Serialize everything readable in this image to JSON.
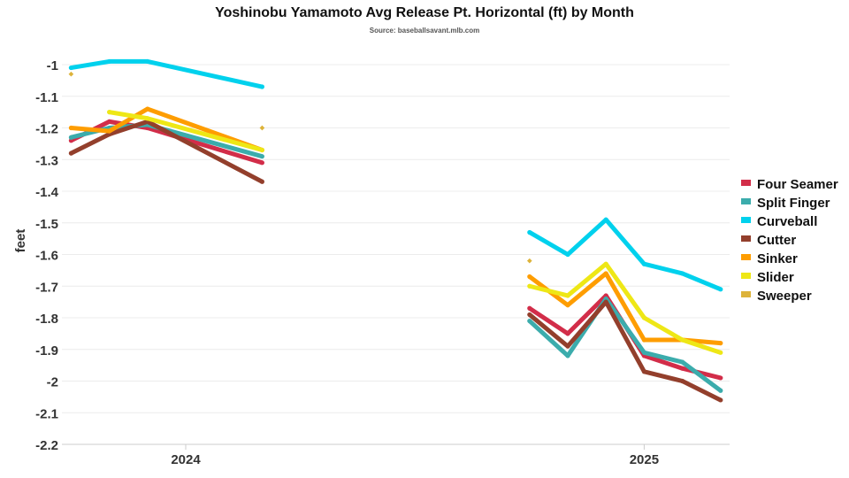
{
  "chart_data": {
    "type": "line",
    "title": "Yoshinobu Yamamoto Avg Release Pt. Horizontal (ft) by Month",
    "subtitle": "Source: baseballsavant.mlb.com",
    "xlabel": "",
    "ylabel": "feet",
    "ylim": [
      -2.2,
      -0.95
    ],
    "yticks": [
      -1,
      -1.1,
      -1.2,
      -1.3,
      -1.4,
      -1.5,
      -1.6,
      -1.7,
      -1.8,
      -1.9,
      -2,
      -2.1,
      -2.2
    ],
    "xticks": [
      "2024",
      "2025"
    ],
    "grid": true,
    "legend": "right",
    "series": [
      {
        "name": "Four Seamer",
        "color": "#d22d49",
        "points": [
          [
            "2024-03",
            -1.24
          ],
          [
            "2024-04",
            -1.18
          ],
          [
            "2024-05",
            -1.2
          ],
          [
            "2024-08",
            -1.31
          ],
          [
            "2025-03",
            -1.77
          ],
          [
            "2025-04",
            -1.85
          ],
          [
            "2025-05",
            -1.73
          ],
          [
            "2025-06",
            -1.92
          ],
          [
            "2025-07",
            -1.96
          ],
          [
            "2025-08",
            -1.99
          ]
        ]
      },
      {
        "name": "Split Finger",
        "color": "#3bacac",
        "points": [
          [
            "2024-03",
            -1.23
          ],
          [
            "2024-04",
            -1.2
          ],
          [
            "2024-05",
            -1.19
          ],
          [
            "2024-08",
            -1.29
          ],
          [
            "2025-03",
            -1.81
          ],
          [
            "2025-04",
            -1.92
          ],
          [
            "2025-05",
            -1.74
          ],
          [
            "2025-06",
            -1.91
          ],
          [
            "2025-07",
            -1.94
          ],
          [
            "2025-08",
            -2.03
          ]
        ]
      },
      {
        "name": "Curveball",
        "color": "#00d1ed",
        "points": [
          [
            "2024-03",
            -1.01
          ],
          [
            "2024-04",
            -0.99
          ],
          [
            "2024-05",
            -0.99
          ],
          [
            "2024-08",
            -1.07
          ],
          [
            "2025-03",
            -1.53
          ],
          [
            "2025-04",
            -1.6
          ],
          [
            "2025-05",
            -1.49
          ],
          [
            "2025-06",
            -1.63
          ],
          [
            "2025-07",
            -1.66
          ],
          [
            "2025-08",
            -1.71
          ]
        ]
      },
      {
        "name": "Cutter",
        "color": "#933f2c",
        "points": [
          [
            "2024-03",
            -1.28
          ],
          [
            "2024-04",
            -1.22
          ],
          [
            "2024-05",
            -1.18
          ],
          [
            "2024-08",
            -1.37
          ],
          [
            "2025-03",
            -1.79
          ],
          [
            "2025-04",
            -1.89
          ],
          [
            "2025-05",
            -1.75
          ],
          [
            "2025-06",
            -1.97
          ],
          [
            "2025-07",
            -2.0
          ],
          [
            "2025-08",
            -2.06
          ]
        ]
      },
      {
        "name": "Sinker",
        "color": "#fe9d00",
        "points": [
          [
            "2024-03",
            -1.2
          ],
          [
            "2024-04",
            -1.21
          ],
          [
            "2024-05",
            -1.14
          ],
          [
            "2024-08",
            -1.27
          ],
          [
            "2025-03",
            -1.67
          ],
          [
            "2025-04",
            -1.76
          ],
          [
            "2025-05",
            -1.66
          ],
          [
            "2025-06",
            -1.87
          ],
          [
            "2025-07",
            -1.87
          ],
          [
            "2025-08",
            -1.88
          ]
        ]
      },
      {
        "name": "Slider",
        "color": "#eee716",
        "points": [
          [
            "2024-04",
            -1.15
          ],
          [
            "2024-05",
            -1.17
          ],
          [
            "2024-08",
            -1.27
          ],
          [
            "2025-03",
            -1.7
          ],
          [
            "2025-04",
            -1.73
          ],
          [
            "2025-05",
            -1.63
          ],
          [
            "2025-06",
            -1.8
          ],
          [
            "2025-07",
            -1.87
          ],
          [
            "2025-08",
            -1.91
          ]
        ]
      },
      {
        "name": "Sweeper",
        "color": "#ddb33a",
        "points": [
          [
            "2024-03",
            -1.03
          ],
          [
            "2024-08",
            -1.2
          ],
          [
            "2025-03",
            -1.62
          ]
        ]
      }
    ]
  }
}
